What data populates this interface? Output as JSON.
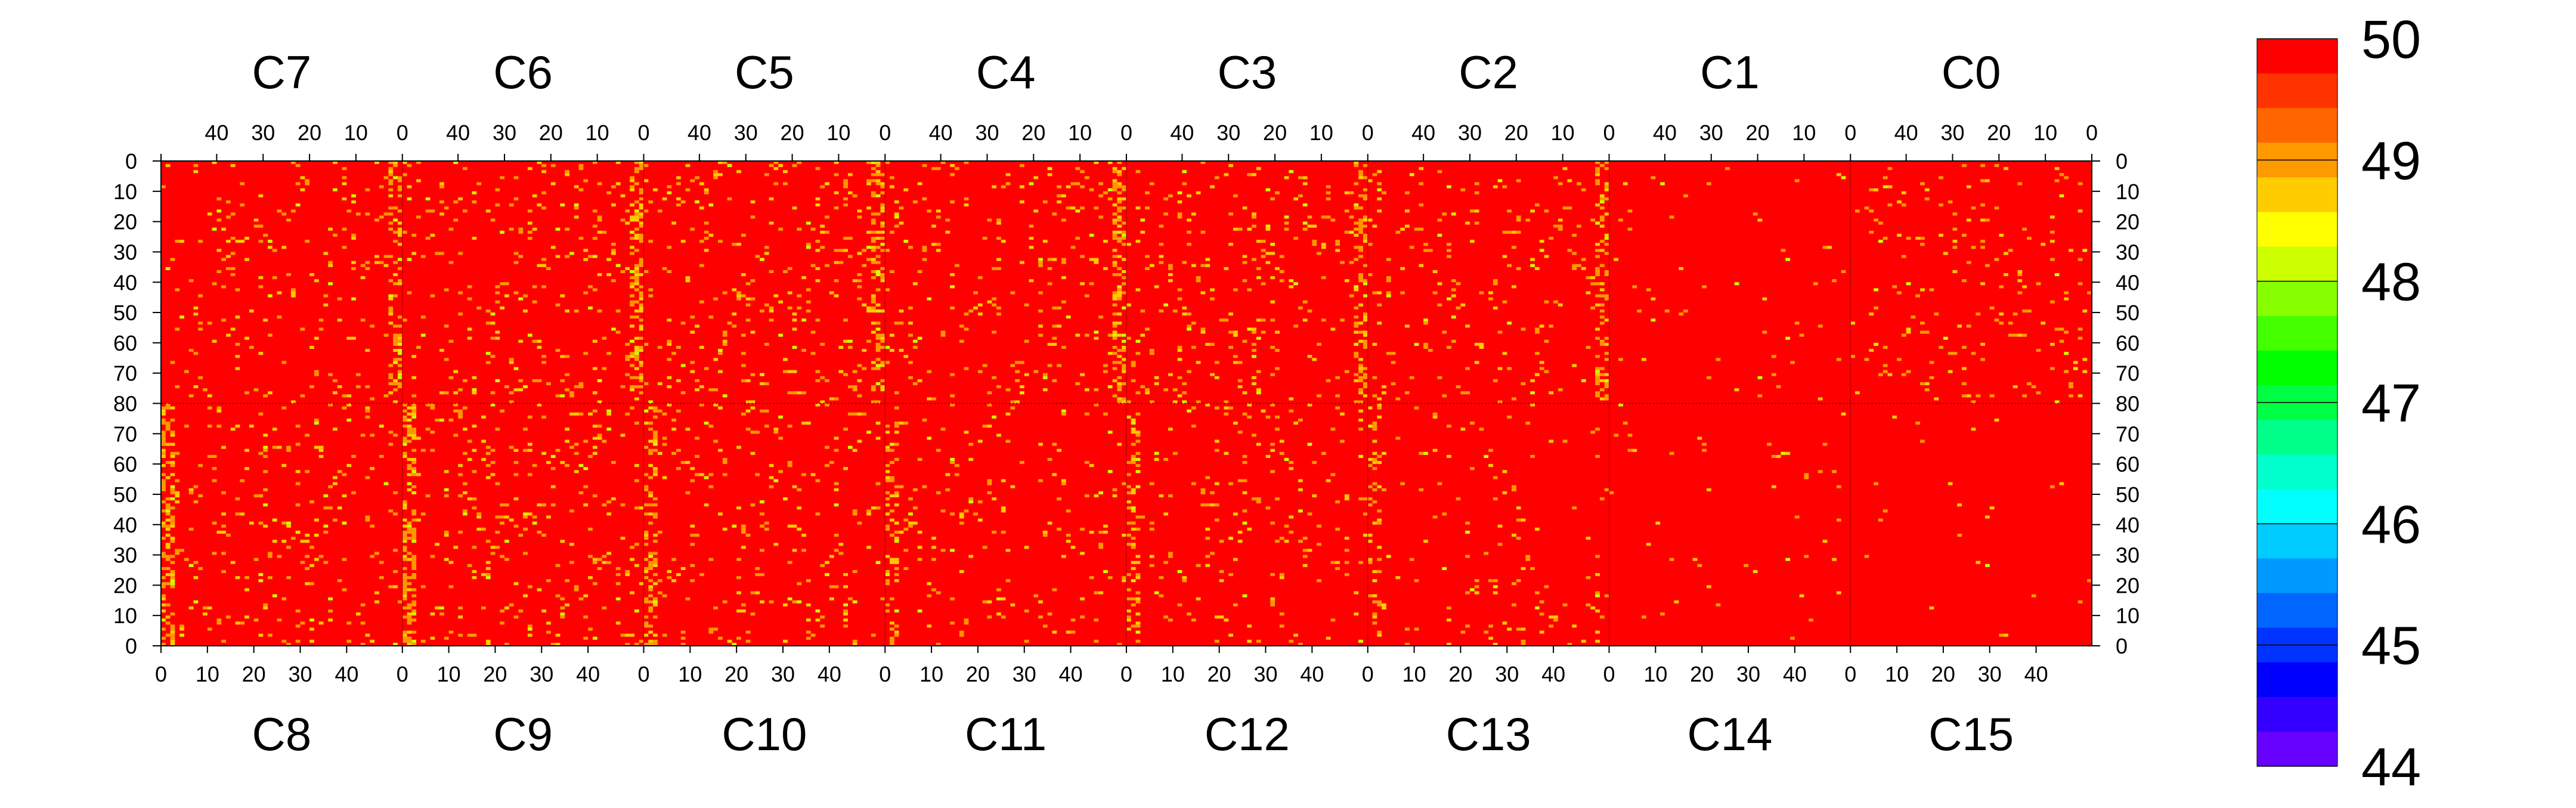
{
  "chart_data": {
    "type": "heatmap",
    "title": "",
    "top_chip_labels": [
      "C7",
      "C6",
      "C5",
      "C4",
      "C3",
      "C2",
      "C1",
      "C0"
    ],
    "bottom_chip_labels": [
      "C8",
      "C9",
      "C10",
      "C11",
      "C12",
      "C13",
      "C14",
      "C15"
    ],
    "top_x_ticks": [
      "40",
      "30",
      "20",
      "10",
      "0"
    ],
    "top_x_tick_values": [
      40,
      30,
      20,
      10,
      0
    ],
    "top_x_start_label": "0",
    "bottom_x_ticks": [
      "0",
      "10",
      "20",
      "30",
      "40"
    ],
    "bottom_x_tick_values": [
      0,
      10,
      20,
      30,
      40
    ],
    "columns_per_chip": 52,
    "rows_per_half": 80,
    "y_ticks_upper": [
      "0",
      "10",
      "20",
      "30",
      "40",
      "50",
      "60",
      "70",
      "80"
    ],
    "y_ticks_lower": [
      "70",
      "60",
      "50",
      "40",
      "30",
      "20",
      "10",
      "0"
    ],
    "zlim": [
      44,
      50
    ],
    "colorbar": {
      "tick_labels": [
        "50",
        "49",
        "48",
        "47",
        "46",
        "45",
        "44"
      ],
      "tick_values": [
        50,
        49,
        48,
        47,
        46,
        45,
        44
      ],
      "colors": [
        "#ff0000",
        "#ff3300",
        "#ff6600",
        "#ff9900",
        "#ffcc00",
        "#ffff00",
        "#ccff00",
        "#88ff00",
        "#44ff00",
        "#00ff00",
        "#00ff44",
        "#00ff88",
        "#00ffcc",
        "#00ffff",
        "#00ccff",
        "#0099ff",
        "#0066ff",
        "#0033ff",
        "#0000ff",
        "#3300ff",
        "#6600ff"
      ]
    },
    "background_value": 50,
    "accent_colors": {
      "dominant": "#ff0000",
      "minor_1": "#ff9900",
      "minor_2": "#ffcc00",
      "minor_3": "#ccff00"
    }
  }
}
